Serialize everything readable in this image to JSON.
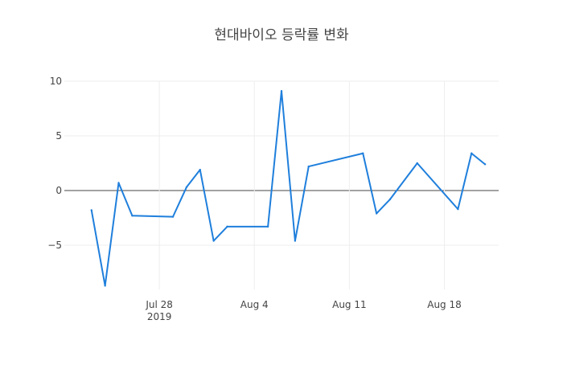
{
  "chart_data": {
    "type": "line",
    "title": "현대바이오 등락률 변화",
    "xlabel": "",
    "ylabel": "",
    "x_axis": {
      "range": [
        "2019-07-21",
        "2019-08-22"
      ],
      "ticks": [
        {
          "date": "2019-07-28",
          "label": "Jul 28",
          "sublabel": "2019"
        },
        {
          "date": "2019-08-04",
          "label": "Aug 4",
          "sublabel": ""
        },
        {
          "date": "2019-08-11",
          "label": "Aug 11",
          "sublabel": ""
        },
        {
          "date": "2019-08-18",
          "label": "Aug 18",
          "sublabel": ""
        }
      ]
    },
    "y_axis": {
      "range": [
        -9,
        10
      ],
      "ticks": [
        -5,
        0,
        5,
        10
      ],
      "tick_labels": [
        "−5",
        "0",
        "5",
        "10"
      ]
    },
    "grid": true,
    "zero_line": true,
    "series": [
      {
        "color": "#1f7fdc",
        "points": [
          {
            "x": "2019-07-23",
            "y": -1.8
          },
          {
            "x": "2019-07-24",
            "y": -8.7
          },
          {
            "x": "2019-07-25",
            "y": 0.7
          },
          {
            "x": "2019-07-26",
            "y": -2.3
          },
          {
            "x": "2019-07-29",
            "y": -2.4
          },
          {
            "x": "2019-07-30",
            "y": 0.3
          },
          {
            "x": "2019-07-31",
            "y": 1.9
          },
          {
            "x": "2019-08-01",
            "y": -4.6
          },
          {
            "x": "2019-08-02",
            "y": -3.3
          },
          {
            "x": "2019-08-05",
            "y": -3.3
          },
          {
            "x": "2019-08-06",
            "y": 9.1
          },
          {
            "x": "2019-08-07",
            "y": -4.6
          },
          {
            "x": "2019-08-08",
            "y": 2.2
          },
          {
            "x": "2019-08-12",
            "y": 3.4
          },
          {
            "x": "2019-08-13",
            "y": -2.1
          },
          {
            "x": "2019-08-14",
            "y": -0.8
          },
          {
            "x": "2019-08-16",
            "y": 2.5
          },
          {
            "x": "2019-08-19",
            "y": -1.7
          },
          {
            "x": "2019-08-20",
            "y": 3.4
          },
          {
            "x": "2019-08-21",
            "y": 2.4
          }
        ]
      }
    ]
  }
}
